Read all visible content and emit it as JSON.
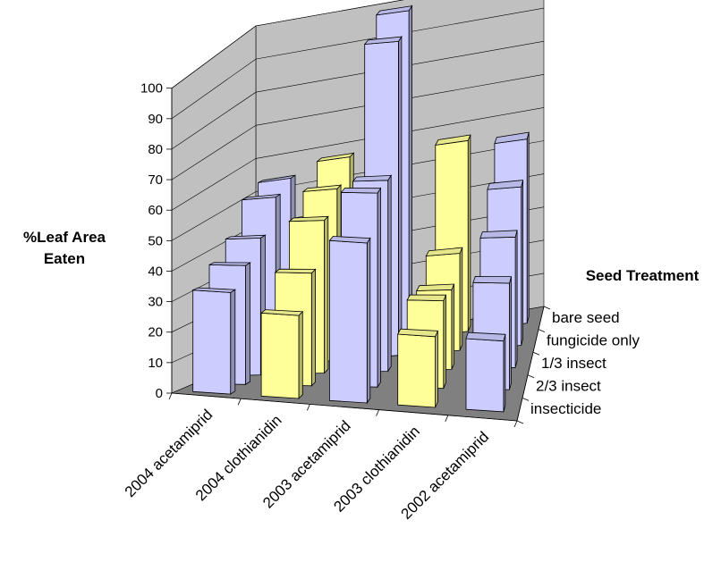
{
  "chart_data": {
    "type": "bar",
    "variant": "3d-column",
    "categories": [
      "2004 acetamiprid",
      "2004 clothianidin",
      "2003 acetamiprid",
      "2003 clothianidin",
      "2002 acetamiprid"
    ],
    "series": [
      {
        "name": "insecticide",
        "values": [
          33,
          27,
          52,
          23,
          23
        ]
      },
      {
        "name": "2/3 insect",
        "values": [
          38,
          36,
          62,
          28,
          34
        ]
      },
      {
        "name": "1/3 insect",
        "values": [
          43,
          48,
          60,
          25,
          41
        ]
      },
      {
        "name": "fungicide only",
        "values": [
          52,
          53,
          97,
          30,
          49
        ]
      },
      {
        "name": "bare seed",
        "values": [
          54,
          58,
          100,
          58,
          56
        ]
      }
    ],
    "series_colors": {
      "insecticide": "#ccccff",
      "2/3 insect": "#ccccff",
      "1/3 insect": "#ccccff",
      "fungicide only": "#ccccff",
      "bare seed": "#ccccff"
    },
    "category_colors": [
      "#ccccff",
      "#ffff99",
      "#ccccff",
      "#ffff99",
      "#ccccff"
    ],
    "ylabel_lines": [
      "%Leaf Area",
      "Eaten"
    ],
    "zlabel": "Seed Treatment",
    "ylim": [
      0,
      100
    ],
    "yticks": [
      "0",
      "10",
      "20",
      "30",
      "40",
      "50",
      "60",
      "70",
      "80",
      "90",
      "100"
    ],
    "gridlines": true,
    "floor_color": "#808080",
    "wall_color": "#c0c0c0"
  }
}
